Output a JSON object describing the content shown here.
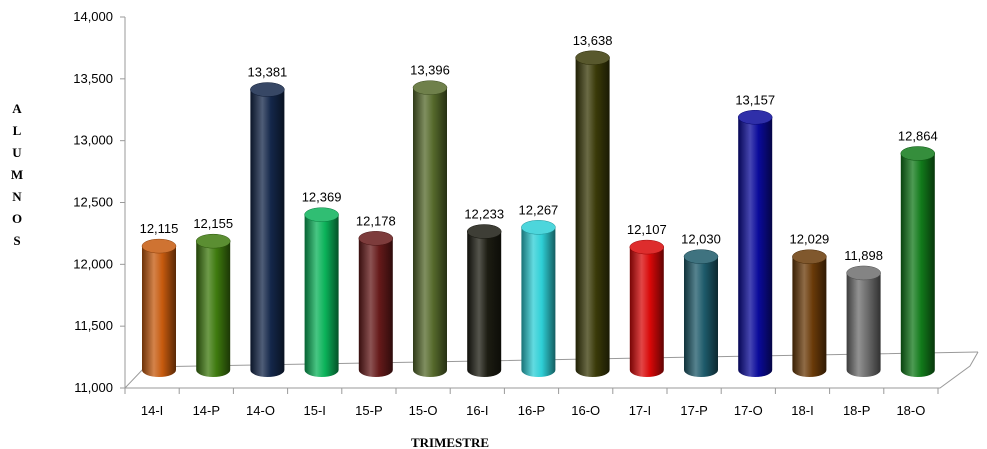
{
  "chart_data": {
    "type": "bar",
    "title": "",
    "xlabel": "TRIMESTRE",
    "ylabel": "ALUMNOS",
    "ylim": [
      11000,
      14000
    ],
    "yticks": [
      "11,000",
      "11,500",
      "12,000",
      "12,500",
      "13,000",
      "13,500",
      "14,000"
    ],
    "ytick_values": [
      11000,
      11500,
      12000,
      12500,
      13000,
      13500,
      14000
    ],
    "categories": [
      "14-I",
      "14-P",
      "14-O",
      "15-I",
      "15-P",
      "15-O",
      "16-I",
      "16-P",
      "16-O",
      "17-I",
      "17-P",
      "17-O",
      "18-I",
      "18-P",
      "18-O"
    ],
    "values": [
      12115,
      12155,
      13381,
      12369,
      12178,
      13396,
      12233,
      12267,
      13638,
      12107,
      12030,
      13157,
      12029,
      11898,
      12864
    ],
    "value_labels": [
      "12,115",
      "12,155",
      "13,381",
      "12,369",
      "12,178",
      "13,396",
      "12,233",
      "12,267",
      "13,638",
      "12,107",
      "12,030",
      "13,157",
      "12,029",
      "11,898",
      "12,864"
    ],
    "colors": [
      "#c65a0e",
      "#3e7a0e",
      "#14274a",
      "#0bb35a",
      "#661a1a",
      "#55692b",
      "#1c1c12",
      "#2ecfd6",
      "#3a3a08",
      "#d80808",
      "#1d5a6a",
      "#0a0a9a",
      "#6a3a08",
      "#6e6e6e",
      "#117a1a"
    ],
    "grid": false,
    "legend": "none"
  }
}
